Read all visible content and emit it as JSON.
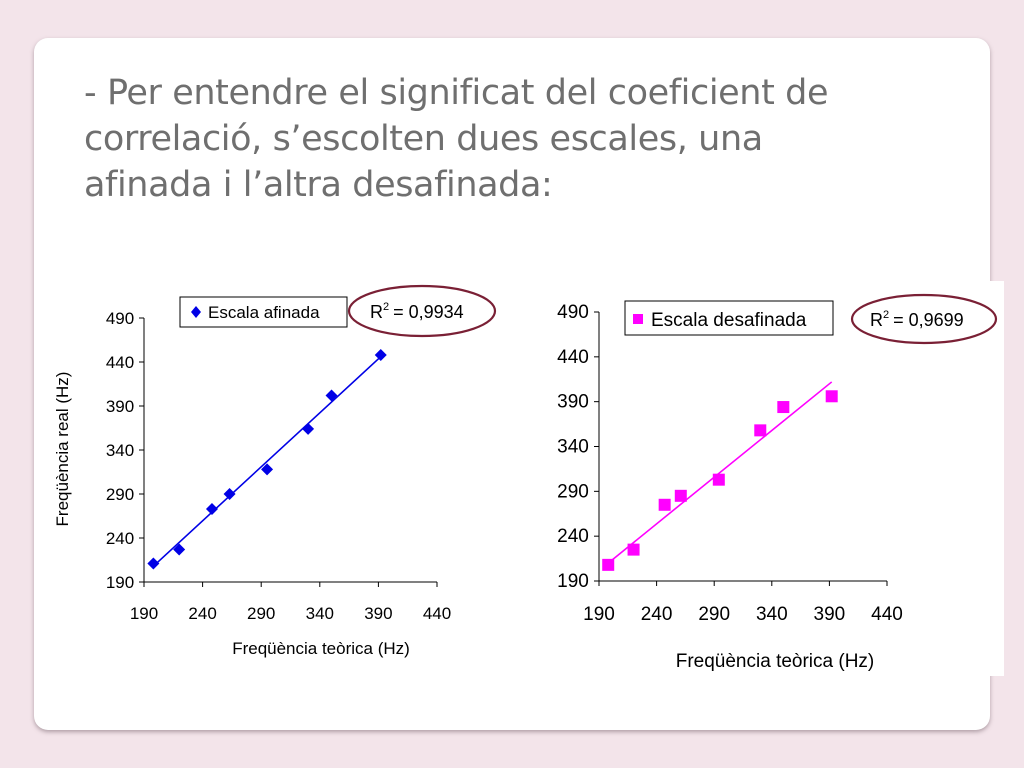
{
  "slide": {
    "heading_lines": [
      "- Per entendre el significat del coeficient de",
      "correlació, s’escolten dues escales, una",
      "afinada i l’altra desafinada:"
    ]
  },
  "chart_data": [
    {
      "type": "scatter",
      "color": "#0000e6",
      "marker": "diamond",
      "series": [
        {
          "name": "Escala afinada",
          "x": [
            198,
            220,
            248,
            263,
            295,
            330,
            350,
            392
          ],
          "y": [
            211,
            227,
            273,
            290,
            318,
            364,
            402,
            448
          ]
        }
      ],
      "trendline": {
        "x": [
          198,
          392
        ],
        "y": [
          208,
          446
        ]
      },
      "r2_label": "= 0,9934",
      "xlabel": "Freqüència teòrica (Hz)",
      "ylabel": "Freqüència real (Hz)",
      "xlim": [
        190,
        440
      ],
      "ylim": [
        190,
        490
      ],
      "xticks": [
        "190",
        "240",
        "290",
        "340",
        "390",
        "440"
      ],
      "yticks": [
        "190",
        "240",
        "290",
        "340",
        "390",
        "440",
        "490"
      ],
      "legend": "top"
    },
    {
      "type": "scatter",
      "color": "#ff00ff",
      "marker": "square",
      "series": [
        {
          "name": "Escala desafinada",
          "x": [
            198,
            220,
            247,
            261,
            294,
            330,
            350,
            392
          ],
          "y": [
            208,
            225,
            275,
            285,
            303,
            358,
            384,
            396
          ]
        }
      ],
      "trendline": {
        "x": [
          198,
          392
        ],
        "y": [
          210,
          412
        ]
      },
      "r2_label": "= 0,9699",
      "xlabel": "Freqüència teòrica (Hz)",
      "ylabel": "",
      "xlim": [
        190,
        440
      ],
      "ylim": [
        190,
        490
      ],
      "xticks": [
        "190",
        "240",
        "290",
        "340",
        "390",
        "440"
      ],
      "yticks": [
        "190",
        "240",
        "290",
        "340",
        "390",
        "440",
        "490"
      ],
      "legend": "top"
    }
  ],
  "annotation": {
    "r2_prefix": "R",
    "r2_exp": "2",
    "ellipse_color": "#7a2035"
  }
}
